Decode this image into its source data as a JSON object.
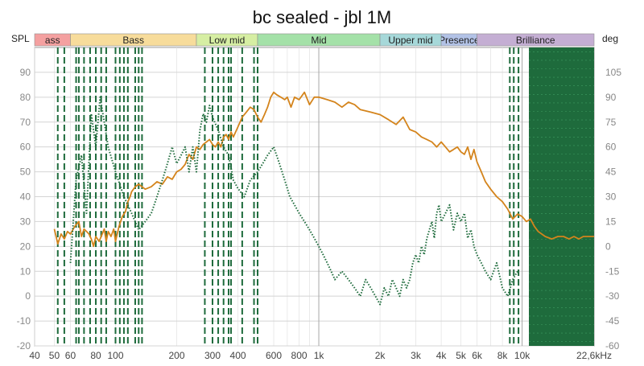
{
  "chart_data": {
    "type": "line",
    "title": "bc sealed - jbl 1M",
    "ylabel_left": "SPL",
    "ylabel_right": "deg",
    "x_scale": "log",
    "xlim": [
      40,
      22600
    ],
    "ylim_left": [
      -20,
      100
    ],
    "ylim_right": [
      -60,
      120
    ],
    "grid": true,
    "x_ticks": [
      {
        "value": 40,
        "label": "40"
      },
      {
        "value": 50,
        "label": "50"
      },
      {
        "value": 60,
        "label": "60"
      },
      {
        "value": 80,
        "label": "80"
      },
      {
        "value": 100,
        "label": "100"
      },
      {
        "value": 200,
        "label": "200"
      },
      {
        "value": 300,
        "label": "300"
      },
      {
        "value": 400,
        "label": "400"
      },
      {
        "value": 600,
        "label": "600"
      },
      {
        "value": 800,
        "label": "800"
      },
      {
        "value": 1000,
        "label": "1k"
      },
      {
        "value": 2000,
        "label": "2k"
      },
      {
        "value": 3000,
        "label": "3k"
      },
      {
        "value": 4000,
        "label": "4k"
      },
      {
        "value": 5000,
        "label": "5k"
      },
      {
        "value": 6000,
        "label": "6k"
      },
      {
        "value": 8000,
        "label": "8k"
      },
      {
        "value": 10000,
        "label": "10k"
      },
      {
        "value": 22600,
        "label": "22,6kHz"
      }
    ],
    "y_ticks_left": [
      -20,
      -10,
      0,
      10,
      20,
      30,
      40,
      50,
      60,
      70,
      80,
      90
    ],
    "y_ticks_right": [
      -60,
      -45,
      -30,
      -15,
      0,
      15,
      30,
      45,
      60,
      75,
      90,
      105
    ],
    "bands": [
      {
        "label": "ass",
        "from": 40,
        "to": 60,
        "color": "#f4a0a0"
      },
      {
        "label": "Bass",
        "from": 60,
        "to": 250,
        "color": "#f7dc9b"
      },
      {
        "label": "Low mid",
        "from": 250,
        "to": 500,
        "color": "#d6eea3"
      },
      {
        "label": "Mid",
        "from": 500,
        "to": 2000,
        "color": "#a4e1a8"
      },
      {
        "label": "Upper mid",
        "from": 2000,
        "to": 4000,
        "color": "#a6d8d9"
      },
      {
        "label": "Presence",
        "from": 4000,
        "to": 6000,
        "color": "#b2c2e6"
      },
      {
        "label": "Brilliance",
        "from": 6000,
        "to": 22600,
        "color": "#c4aed3"
      }
    ],
    "series": [
      {
        "axis": "left",
        "color": "#d4841c",
        "style": "solid",
        "x": [
          50,
          52,
          54,
          56,
          58,
          60,
          63,
          66,
          68,
          70,
          72,
          74,
          76,
          78,
          80,
          83,
          86,
          88,
          90,
          92,
          95,
          98,
          100,
          104,
          108,
          112,
          115,
          118,
          120,
          125,
          130,
          140,
          150,
          160,
          170,
          180,
          190,
          200,
          210,
          220,
          230,
          240,
          250,
          260,
          270,
          280,
          290,
          300,
          310,
          320,
          330,
          340,
          350,
          360,
          370,
          380,
          400,
          420,
          440,
          460,
          480,
          500,
          520,
          540,
          560,
          580,
          600,
          620,
          650,
          680,
          700,
          730,
          760,
          800,
          850,
          900,
          950,
          1000,
          1100,
          1200,
          1300,
          1400,
          1500,
          1600,
          1800,
          2000,
          2200,
          2400,
          2600,
          2800,
          3000,
          3200,
          3400,
          3600,
          3800,
          4000,
          4200,
          4400,
          4600,
          4800,
          5000,
          5200,
          5400,
          5600,
          5800,
          6000,
          6300,
          6600,
          7000,
          7500,
          8000,
          8500,
          9000,
          9500,
          10000,
          10500,
          11000,
          11500,
          12000,
          13000,
          14000,
          15000,
          16000,
          17000,
          18000,
          19000,
          20000,
          21000,
          22600
        ],
        "y": [
          27,
          21,
          25,
          23,
          26,
          25,
          28,
          30,
          24,
          27,
          26,
          25,
          23,
          20,
          24,
          22,
          25,
          27,
          22,
          26,
          24,
          27,
          22,
          28,
          32,
          34,
          38,
          40,
          42,
          44,
          45,
          43,
          44,
          46,
          45,
          48,
          47,
          50,
          51,
          53,
          57,
          55,
          60,
          59,
          61,
          62,
          63,
          61,
          60,
          62,
          60,
          64,
          65,
          63,
          66,
          64,
          68,
          72,
          74,
          76,
          75,
          72,
          70,
          73,
          76,
          80,
          82,
          81,
          80,
          79,
          80,
          76,
          80,
          79,
          82,
          77,
          80,
          80,
          79,
          78,
          76,
          78,
          77,
          75,
          74,
          73,
          71,
          69,
          72,
          67,
          66,
          64,
          63,
          62,
          60,
          62,
          60,
          58,
          59,
          60,
          58,
          57,
          60,
          55,
          59,
          54,
          50,
          46,
          43,
          40,
          38,
          35,
          31,
          33,
          32,
          30,
          31,
          28,
          26,
          24,
          23,
          24,
          24,
          23,
          24,
          23,
          24,
          24,
          24
        ]
      },
      {
        "axis": "right",
        "color": "#1e6b3c",
        "style": "dotted",
        "x": [
          60,
          64,
          68,
          72,
          76,
          80,
          84,
          88,
          92,
          100,
          110,
          120,
          130,
          140,
          150,
          160,
          170,
          180,
          190,
          200,
          210,
          220,
          230,
          240,
          250,
          260,
          270,
          280,
          290,
          300,
          320,
          340,
          360,
          380,
          400,
          430,
          460,
          500,
          530,
          560,
          600,
          640,
          680,
          720,
          760,
          800,
          850,
          900,
          950,
          1000,
          1050,
          1100,
          1150,
          1200,
          1300,
          1400,
          1500,
          1600,
          1700,
          1800,
          1900,
          2000,
          2100,
          2200,
          2300,
          2400,
          2500,
          2600,
          2700,
          2800,
          2900,
          3000,
          3100,
          3200,
          3300,
          3400,
          3500,
          3600,
          3700,
          3800,
          3900,
          4000,
          4200,
          4400,
          4600,
          4800,
          5000,
          5200,
          5400,
          5600,
          5800,
          6000,
          6300,
          6600,
          7000,
          7500,
          8000,
          8500,
          9000,
          9500
        ],
        "y": [
          -10,
          40,
          55,
          20,
          80,
          60,
          90,
          75,
          60,
          45,
          30,
          20,
          10,
          15,
          20,
          30,
          40,
          50,
          60,
          50,
          55,
          60,
          45,
          60,
          45,
          70,
          80,
          75,
          85,
          78,
          70,
          60,
          55,
          40,
          35,
          30,
          40,
          45,
          50,
          55,
          60,
          50,
          40,
          30,
          25,
          20,
          15,
          10,
          5,
          0,
          -5,
          -10,
          -15,
          -20,
          -15,
          -20,
          -25,
          -30,
          -20,
          -25,
          -30,
          -35,
          -25,
          -30,
          -20,
          -25,
          -30,
          -20,
          -25,
          -20,
          -10,
          -5,
          -10,
          0,
          -5,
          5,
          10,
          15,
          5,
          20,
          25,
          15,
          20,
          25,
          10,
          20,
          15,
          20,
          5,
          10,
          0,
          -5,
          -10,
          -15,
          -20,
          -10,
          -25,
          -30,
          -20,
          -15
        ]
      }
    ],
    "vertical_dashed_lines": [
      52,
      56,
      64,
      66,
      70,
      75,
      80,
      85,
      90,
      100,
      105,
      110,
      115,
      125,
      130,
      135,
      275,
      300,
      320,
      340,
      360,
      370,
      420,
      480,
      500,
      8700,
      9100,
      9600
    ]
  }
}
